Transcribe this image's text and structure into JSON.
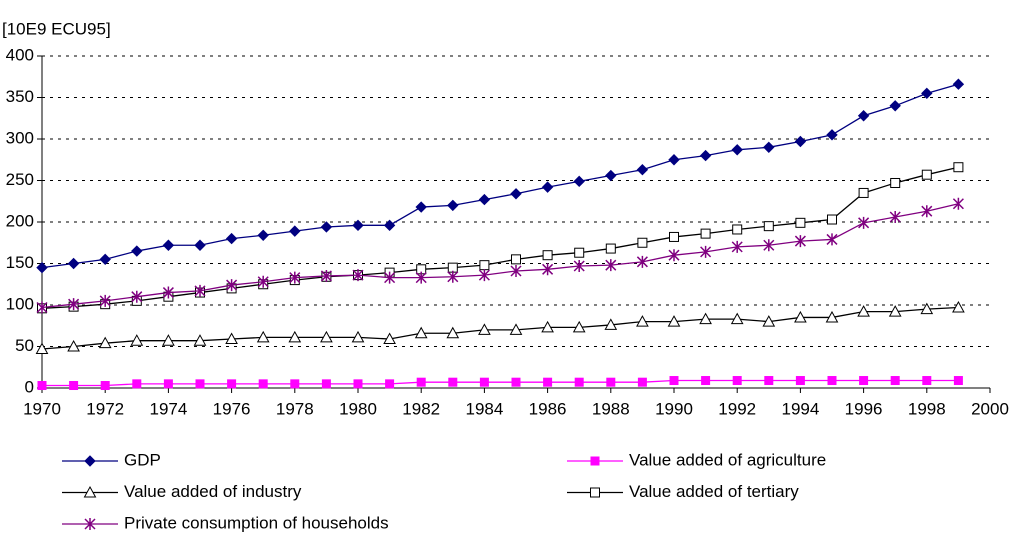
{
  "chart_data": {
    "type": "line",
    "y_label": "[10E9 ECU95]",
    "x": [
      1970,
      1971,
      1972,
      1973,
      1974,
      1975,
      1976,
      1977,
      1978,
      1979,
      1980,
      1981,
      1982,
      1983,
      1984,
      1985,
      1986,
      1987,
      1988,
      1989,
      1990,
      1991,
      1992,
      1993,
      1994,
      1995,
      1996,
      1997,
      1998,
      1999
    ],
    "series": [
      {
        "name": "GDP",
        "color": "#000080",
        "marker": "diamond",
        "values": [
          145,
          150,
          155,
          165,
          172,
          172,
          180,
          184,
          189,
          194,
          196,
          196,
          218,
          220,
          227,
          234,
          242,
          249,
          256,
          263,
          275,
          280,
          287,
          290,
          297,
          305,
          328,
          340,
          355,
          366
        ]
      },
      {
        "name": "Value added of agriculture",
        "color": "#ff00ff",
        "marker": "square",
        "values": [
          3,
          3,
          3,
          5,
          5,
          5,
          5,
          5,
          5,
          5,
          5,
          5,
          7,
          7,
          7,
          7,
          7,
          7,
          7,
          7,
          9,
          9,
          9,
          9,
          9,
          9,
          9,
          9,
          9,
          9
        ]
      },
      {
        "name": "Value added of industry",
        "color": "#000000",
        "marker": "triangle-open",
        "values": [
          47,
          50,
          54,
          57,
          57,
          57,
          59,
          61,
          61,
          61,
          61,
          59,
          66,
          66,
          70,
          70,
          73,
          73,
          76,
          80,
          80,
          83,
          83,
          80,
          85,
          85,
          92,
          92,
          95,
          97
        ]
      },
      {
        "name": "Value added of tertiary",
        "color": "#000000",
        "marker": "square-open",
        "values": [
          96,
          98,
          101,
          105,
          110,
          115,
          120,
          125,
          130,
          134,
          136,
          139,
          143,
          145,
          148,
          155,
          160,
          163,
          168,
          175,
          182,
          186,
          191,
          195,
          199,
          203,
          235,
          247,
          257,
          266
        ]
      },
      {
        "name": "Private consumption of households",
        "color": "#800080",
        "marker": "star",
        "values": [
          97,
          101,
          105,
          110,
          115,
          117,
          124,
          128,
          133,
          135,
          136,
          133,
          133,
          134,
          136,
          141,
          143,
          147,
          148,
          152,
          160,
          164,
          170,
          172,
          177,
          179,
          199,
          206,
          213,
          222
        ]
      }
    ],
    "xlim": [
      1970,
      2000
    ],
    "xticks": [
      1970,
      1972,
      1974,
      1976,
      1978,
      1980,
      1982,
      1984,
      1986,
      1988,
      1990,
      1992,
      1994,
      1996,
      1998,
      2000
    ],
    "ylim": [
      0,
      400
    ],
    "yticks": [
      0,
      50,
      100,
      150,
      200,
      250,
      300,
      350,
      400
    ],
    "grid": true
  }
}
